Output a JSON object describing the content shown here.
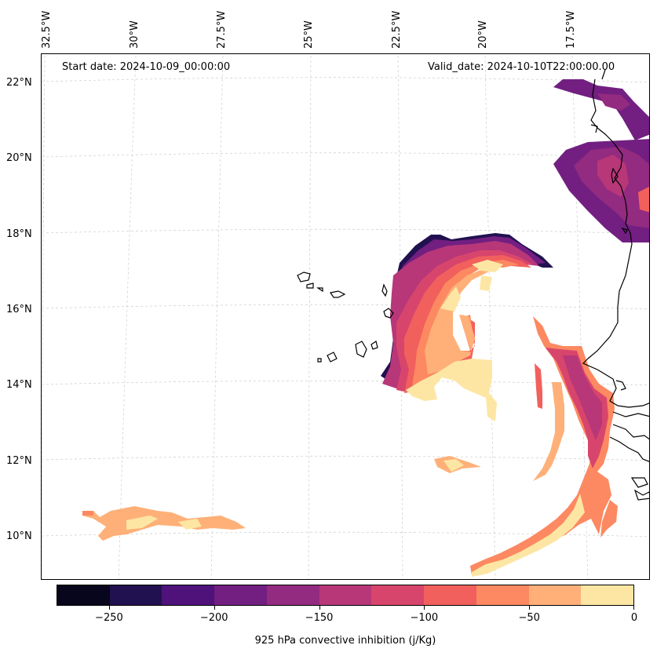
{
  "map": {
    "start_label": "Start date: 2024-10-09_00:00:00",
    "valid_label": "Valid_date: 2024-10-10T22:00:00.00",
    "lon_labels": [
      "32.5°W",
      "30°W",
      "27.5°W",
      "25°W",
      "22.5°W",
      "20°W",
      "17.5°W"
    ],
    "lat_labels": [
      "22°N",
      "20°N",
      "18°N",
      "16°N",
      "14°N",
      "12°N",
      "10°N"
    ],
    "coastline_color": "#000000",
    "gridline_color": "#cccccc"
  },
  "colorbar": {
    "title": "925 hPa convective inhibition (j/Kg)",
    "tick_labels": [
      "−250",
      "−200",
      "−150",
      "−100",
      "−50",
      "0"
    ],
    "range": [
      -275,
      0
    ],
    "step": 25,
    "colors": [
      "#07061c",
      "#221150",
      "#4f127b",
      "#721f81",
      "#932b80",
      "#b73779",
      "#d8456c",
      "#f1605d",
      "#fc8961",
      "#feb078",
      "#fde6a4"
    ]
  }
}
